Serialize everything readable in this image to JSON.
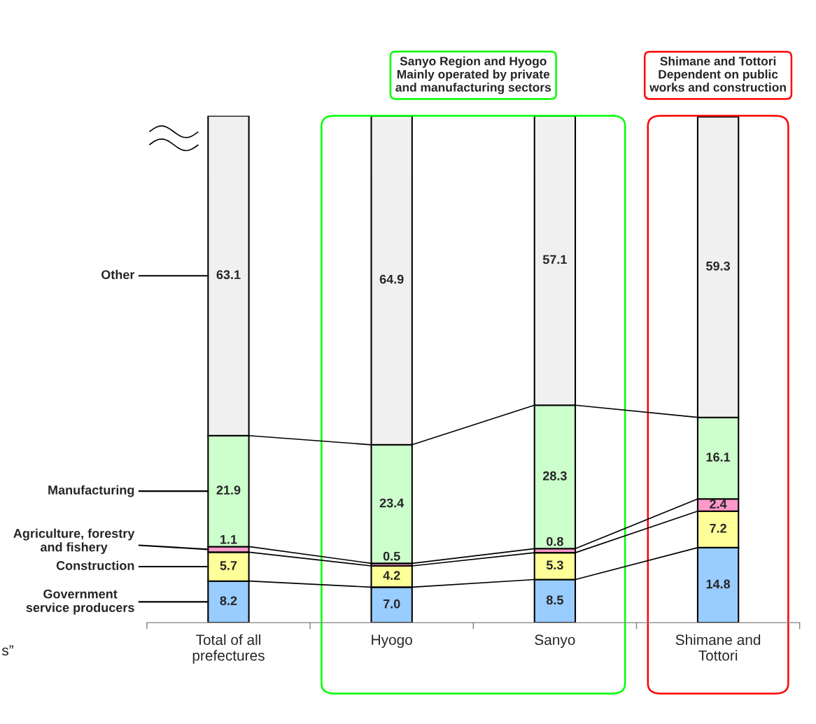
{
  "chart_data": {
    "type": "bar",
    "stacked": true,
    "categories": [
      "Total of all\nprefectures",
      "Hyogo",
      "Sanyo",
      "Shimane and\nTottori"
    ],
    "series": [
      {
        "name": "Government\nservice producers",
        "color": "#99ccff",
        "values": [
          8.2,
          7.0,
          8.5,
          14.8
        ],
        "value_labels": [
          "8.2",
          "7.0",
          "8.5",
          "14.8"
        ]
      },
      {
        "name": "Construction",
        "color": "#ffff99",
        "values": [
          5.7,
          4.2,
          5.3,
          7.2
        ],
        "value_labels": [
          "5.7",
          "4.2",
          "5.3",
          "7.2"
        ]
      },
      {
        "name": "Agriculture, forestry\nand fishery",
        "color": "#ff99cc",
        "values": [
          1.1,
          0.5,
          0.8,
          2.4
        ],
        "value_labels": [
          "1.1",
          "0.5",
          "0.8",
          "2.4"
        ]
      },
      {
        "name": "Manufacturing",
        "color": "#ccffcc",
        "values": [
          21.9,
          23.4,
          28.3,
          16.1
        ],
        "value_labels": [
          "21.9",
          "23.4",
          "28.3",
          "16.1"
        ]
      },
      {
        "name": "Other",
        "color": "#f0f0f0",
        "values": [
          63.1,
          64.9,
          57.1,
          59.3
        ],
        "value_labels": [
          "63.1",
          "64.9",
          "57.1",
          "59.3"
        ]
      }
    ],
    "annotations": [
      "Sanyo Region and Hyogo\nMainly operated by private\nand manufacturing sectors",
      "Shimane and Tottori\nDependent on public\nworks and construction",
      "s”"
    ]
  }
}
